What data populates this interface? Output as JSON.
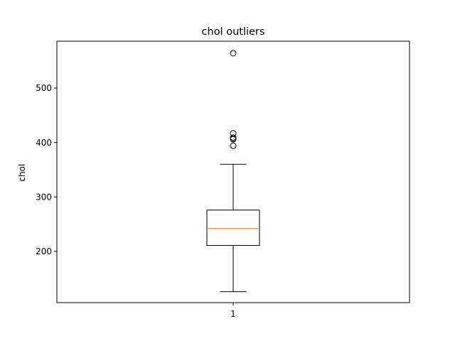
{
  "chart_data": {
    "type": "box",
    "title": "chol outliers",
    "xlabel": "",
    "ylabel": "chol",
    "categories": [
      "1"
    ],
    "ylim": [
      106,
      586
    ],
    "yticks": [
      200,
      300,
      400,
      500
    ],
    "grid": false,
    "boxes": [
      {
        "name": "1",
        "whisker_low": 126,
        "q1": 211,
        "median": 242,
        "q3": 276,
        "whisker_high": 360,
        "outliers": [
          564,
          417,
          409,
          407,
          406,
          394
        ]
      }
    ],
    "colors": {
      "box": "#000000",
      "median": "#ff7f0e",
      "outlier": "#000000"
    }
  }
}
